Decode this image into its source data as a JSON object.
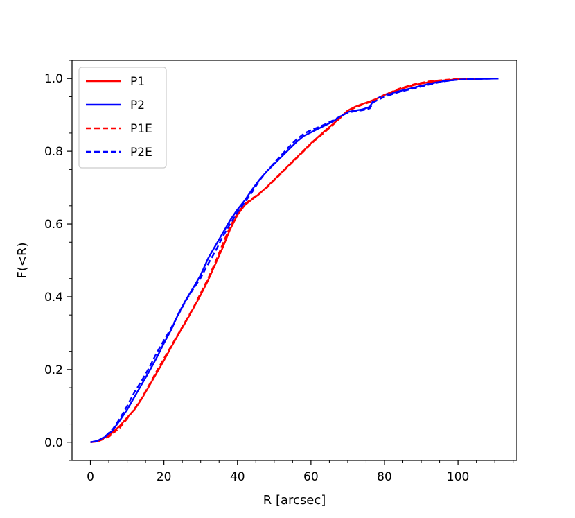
{
  "chart_data": {
    "type": "line",
    "title": "",
    "xlabel": "R [arcsec]",
    "ylabel": "F(<R)",
    "xlim": [
      -5,
      116
    ],
    "ylim": [
      -0.05,
      1.05
    ],
    "x_ticks": [
      0,
      20,
      40,
      60,
      80,
      100
    ],
    "x_tick_labels": [
      "0",
      "20",
      "40",
      "60",
      "80",
      "100"
    ],
    "y_ticks": [
      0.0,
      0.2,
      0.4,
      0.6,
      0.8,
      1.0
    ],
    "y_tick_labels": [
      "0.0",
      "0.2",
      "0.4",
      "0.6",
      "0.8",
      "1.0"
    ],
    "grid": false,
    "legend_position": "upper-left",
    "series": [
      {
        "name": "P1",
        "color": "#ff0000",
        "dash": "solid",
        "points": [
          [
            0,
            0
          ],
          [
            2,
            0.003
          ],
          [
            5,
            0.018
          ],
          [
            8,
            0.045
          ],
          [
            10,
            0.068
          ],
          [
            12,
            0.09
          ],
          [
            14,
            0.12
          ],
          [
            16,
            0.155
          ],
          [
            18,
            0.19
          ],
          [
            20,
            0.225
          ],
          [
            22,
            0.262
          ],
          [
            24,
            0.298
          ],
          [
            26,
            0.332
          ],
          [
            28,
            0.368
          ],
          [
            30,
            0.405
          ],
          [
            32,
            0.445
          ],
          [
            34,
            0.49
          ],
          [
            36,
            0.535
          ],
          [
            38,
            0.585
          ],
          [
            40,
            0.625
          ],
          [
            42,
            0.652
          ],
          [
            44,
            0.668
          ],
          [
            46,
            0.683
          ],
          [
            48,
            0.702
          ],
          [
            50,
            0.722
          ],
          [
            52,
            0.742
          ],
          [
            54,
            0.762
          ],
          [
            56,
            0.782
          ],
          [
            58,
            0.802
          ],
          [
            60,
            0.822
          ],
          [
            62,
            0.84
          ],
          [
            64,
            0.858
          ],
          [
            66,
            0.875
          ],
          [
            68,
            0.893
          ],
          [
            70,
            0.912
          ],
          [
            72,
            0.922
          ],
          [
            74,
            0.93
          ],
          [
            76,
            0.937
          ],
          [
            78,
            0.945
          ],
          [
            80,
            0.955
          ],
          [
            84,
            0.97
          ],
          [
            88,
            0.982
          ],
          [
            92,
            0.99
          ],
          [
            96,
            0.995
          ],
          [
            100,
            0.998
          ],
          [
            105,
            1.0
          ]
        ]
      },
      {
        "name": "P2",
        "color": "#0000ff",
        "dash": "solid",
        "points": [
          [
            0,
            0
          ],
          [
            2,
            0.004
          ],
          [
            4,
            0.015
          ],
          [
            6,
            0.032
          ],
          [
            8,
            0.06
          ],
          [
            10,
            0.09
          ],
          [
            12,
            0.125
          ],
          [
            14,
            0.16
          ],
          [
            16,
            0.195
          ],
          [
            18,
            0.232
          ],
          [
            20,
            0.272
          ],
          [
            22,
            0.31
          ],
          [
            24,
            0.355
          ],
          [
            26,
            0.392
          ],
          [
            28,
            0.425
          ],
          [
            30,
            0.46
          ],
          [
            32,
            0.505
          ],
          [
            34,
            0.54
          ],
          [
            36,
            0.575
          ],
          [
            38,
            0.61
          ],
          [
            40,
            0.64
          ],
          [
            42,
            0.665
          ],
          [
            44,
            0.695
          ],
          [
            46,
            0.722
          ],
          [
            48,
            0.745
          ],
          [
            50,
            0.765
          ],
          [
            52,
            0.785
          ],
          [
            54,
            0.805
          ],
          [
            56,
            0.825
          ],
          [
            58,
            0.842
          ],
          [
            60,
            0.852
          ],
          [
            62,
            0.862
          ],
          [
            64,
            0.872
          ],
          [
            66,
            0.882
          ],
          [
            68,
            0.895
          ],
          [
            70,
            0.908
          ],
          [
            72,
            0.912
          ],
          [
            74,
            0.915
          ],
          [
            76,
            0.922
          ],
          [
            77,
            0.94
          ],
          [
            80,
            0.955
          ],
          [
            84,
            0.965
          ],
          [
            88,
            0.975
          ],
          [
            92,
            0.985
          ],
          [
            96,
            0.993
          ],
          [
            100,
            0.997
          ],
          [
            105,
            0.999
          ],
          [
            111,
            1.0
          ]
        ]
      },
      {
        "name": "P1E",
        "color": "#ff0000",
        "dash": "dashed",
        "points": [
          [
            0,
            0
          ],
          [
            2,
            0.002
          ],
          [
            5,
            0.015
          ],
          [
            8,
            0.04
          ],
          [
            10,
            0.065
          ],
          [
            12,
            0.092
          ],
          [
            14,
            0.122
          ],
          [
            16,
            0.158
          ],
          [
            18,
            0.195
          ],
          [
            20,
            0.23
          ],
          [
            22,
            0.265
          ],
          [
            24,
            0.3
          ],
          [
            26,
            0.335
          ],
          [
            28,
            0.37
          ],
          [
            30,
            0.41
          ],
          [
            32,
            0.45
          ],
          [
            34,
            0.495
          ],
          [
            36,
            0.545
          ],
          [
            38,
            0.592
          ],
          [
            40,
            0.63
          ],
          [
            42,
            0.655
          ],
          [
            44,
            0.67
          ],
          [
            46,
            0.685
          ],
          [
            48,
            0.7
          ],
          [
            50,
            0.72
          ],
          [
            52,
            0.74
          ],
          [
            54,
            0.76
          ],
          [
            56,
            0.78
          ],
          [
            58,
            0.8
          ],
          [
            60,
            0.82
          ],
          [
            62,
            0.838
          ],
          [
            64,
            0.855
          ],
          [
            66,
            0.873
          ],
          [
            68,
            0.892
          ],
          [
            70,
            0.91
          ],
          [
            72,
            0.92
          ],
          [
            74,
            0.928
          ],
          [
            76,
            0.935
          ],
          [
            78,
            0.945
          ],
          [
            80,
            0.955
          ],
          [
            84,
            0.972
          ],
          [
            88,
            0.984
          ],
          [
            92,
            0.992
          ],
          [
            96,
            0.996
          ],
          [
            100,
            0.999
          ],
          [
            106,
            1.0
          ]
        ]
      },
      {
        "name": "P2E",
        "color": "#0000ff",
        "dash": "dashed",
        "points": [
          [
            0,
            0
          ],
          [
            2,
            0.004
          ],
          [
            4,
            0.016
          ],
          [
            6,
            0.035
          ],
          [
            8,
            0.065
          ],
          [
            10,
            0.1
          ],
          [
            12,
            0.138
          ],
          [
            14,
            0.17
          ],
          [
            16,
            0.205
          ],
          [
            18,
            0.245
          ],
          [
            20,
            0.28
          ],
          [
            22,
            0.315
          ],
          [
            24,
            0.352
          ],
          [
            26,
            0.39
          ],
          [
            28,
            0.422
          ],
          [
            30,
            0.452
          ],
          [
            32,
            0.49
          ],
          [
            34,
            0.525
          ],
          [
            36,
            0.565
          ],
          [
            38,
            0.6
          ],
          [
            40,
            0.632
          ],
          [
            42,
            0.66
          ],
          [
            44,
            0.688
          ],
          [
            46,
            0.72
          ],
          [
            48,
            0.745
          ],
          [
            50,
            0.768
          ],
          [
            52,
            0.79
          ],
          [
            54,
            0.812
          ],
          [
            56,
            0.832
          ],
          [
            58,
            0.848
          ],
          [
            60,
            0.858
          ],
          [
            62,
            0.866
          ],
          [
            64,
            0.875
          ],
          [
            66,
            0.885
          ],
          [
            68,
            0.896
          ],
          [
            70,
            0.906
          ],
          [
            72,
            0.91
          ],
          [
            74,
            0.913
          ],
          [
            76,
            0.918
          ],
          [
            77,
            0.935
          ],
          [
            80,
            0.95
          ],
          [
            84,
            0.963
          ],
          [
            88,
            0.973
          ],
          [
            92,
            0.983
          ],
          [
            96,
            0.992
          ],
          [
            100,
            0.997
          ],
          [
            105,
            0.999
          ],
          [
            111,
            1.0
          ]
        ]
      }
    ]
  }
}
